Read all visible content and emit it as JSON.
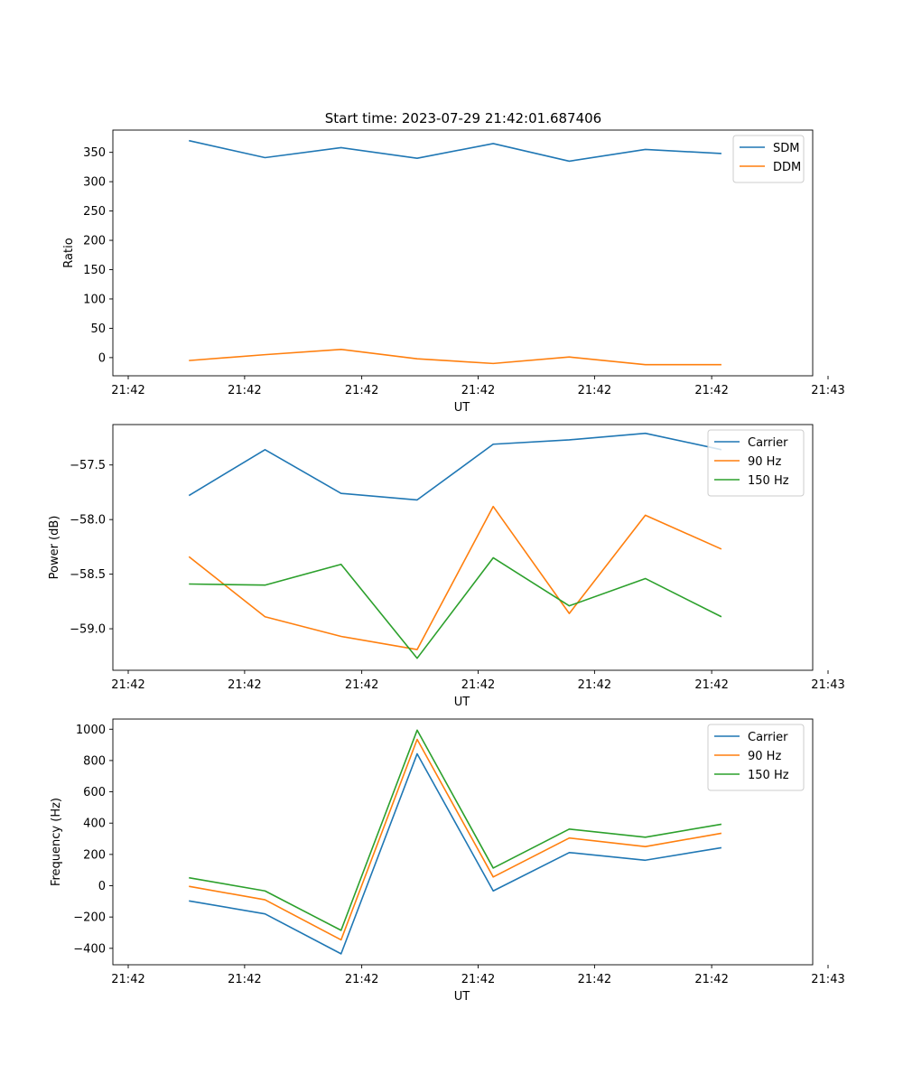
{
  "title": "Start time: 2023-07-29 21:42:01.687406",
  "chart_data": [
    {
      "type": "line",
      "xlabel": "UT",
      "ylabel": "Ratio",
      "x": [
        1,
        2,
        3,
        4,
        5,
        6,
        7,
        8
      ],
      "xlim": [
        0,
        9.2
      ],
      "xticks": [
        0,
        1.53,
        3.07,
        4.6,
        6.13,
        7.67,
        9.2
      ],
      "xtick_labels": [
        "21:42",
        "21:42",
        "21:42",
        "21:42",
        "21:42",
        "21:42",
        "21:43"
      ],
      "ylim": [
        -31,
        388
      ],
      "yticks": [
        0,
        50,
        100,
        150,
        200,
        250,
        300,
        350
      ],
      "ytick_labels": [
        "0",
        "50",
        "100",
        "150",
        "200",
        "250",
        "300",
        "350"
      ],
      "legend_position": "top-right",
      "series": [
        {
          "name": "SDM",
          "color": "#1f77b4",
          "values": [
            370,
            341,
            358,
            340,
            365,
            335,
            355,
            348
          ]
        },
        {
          "name": "DDM",
          "color": "#ff7f0e",
          "values": [
            -5,
            5,
            14,
            -2,
            -10,
            1,
            -12,
            -12
          ]
        }
      ]
    },
    {
      "type": "line",
      "xlabel": "UT",
      "ylabel": "Power (dB)",
      "x": [
        1,
        2,
        3,
        4,
        5,
        6,
        7,
        8
      ],
      "xlim": [
        0,
        9.2
      ],
      "xticks": [
        0,
        1.53,
        3.07,
        4.6,
        6.13,
        7.67,
        9.2
      ],
      "xtick_labels": [
        "21:42",
        "21:42",
        "21:42",
        "21:42",
        "21:42",
        "21:42",
        "21:43"
      ],
      "ylim": [
        -59.38,
        -57.13
      ],
      "yticks": [
        -59.0,
        -58.5,
        -58.0,
        -57.5
      ],
      "ytick_labels": [
        "−59.0",
        "−58.5",
        "−58.0",
        "−57.5"
      ],
      "legend_position": "top-right",
      "series": [
        {
          "name": "Carrier",
          "color": "#1f77b4",
          "values": [
            -57.78,
            -57.36,
            -57.76,
            -57.82,
            -57.31,
            -57.27,
            -57.21,
            -57.36
          ]
        },
        {
          "name": "90 Hz",
          "color": "#ff7f0e",
          "values": [
            -58.34,
            -58.89,
            -59.07,
            -59.19,
            -57.88,
            -58.86,
            -57.96,
            -58.27
          ]
        },
        {
          "name": "150 Hz",
          "color": "#2ca02c",
          "values": [
            -58.59,
            -58.6,
            -58.41,
            -59.27,
            -58.35,
            -58.79,
            -58.54,
            -58.89
          ]
        }
      ]
    },
    {
      "type": "line",
      "xlabel": "UT",
      "ylabel": "Frequency (Hz)",
      "x": [
        1,
        2,
        3,
        4,
        5,
        6,
        7,
        8
      ],
      "xlim": [
        0,
        9.2
      ],
      "xticks": [
        0,
        1.53,
        3.07,
        4.6,
        6.13,
        7.67,
        9.2
      ],
      "xtick_labels": [
        "21:42",
        "21:42",
        "21:42",
        "21:42",
        "21:42",
        "21:42",
        "21:43"
      ],
      "ylim": [
        -505,
        1065
      ],
      "yticks": [
        -400,
        -200,
        0,
        200,
        400,
        600,
        800,
        1000
      ],
      "ytick_labels": [
        "−400",
        "−200",
        "0",
        "200",
        "400",
        "600",
        "800",
        "1000"
      ],
      "legend_position": "top-right",
      "series": [
        {
          "name": "Carrier",
          "color": "#1f77b4",
          "values": [
            -97,
            -180,
            -435,
            843,
            -33,
            212,
            163,
            243
          ]
        },
        {
          "name": "90 Hz",
          "color": "#ff7f0e",
          "values": [
            -4,
            -90,
            -346,
            935,
            56,
            305,
            250,
            335
          ]
        },
        {
          "name": "150 Hz",
          "color": "#2ca02c",
          "values": [
            51,
            -33,
            -285,
            994,
            113,
            362,
            310,
            393
          ]
        }
      ]
    }
  ]
}
